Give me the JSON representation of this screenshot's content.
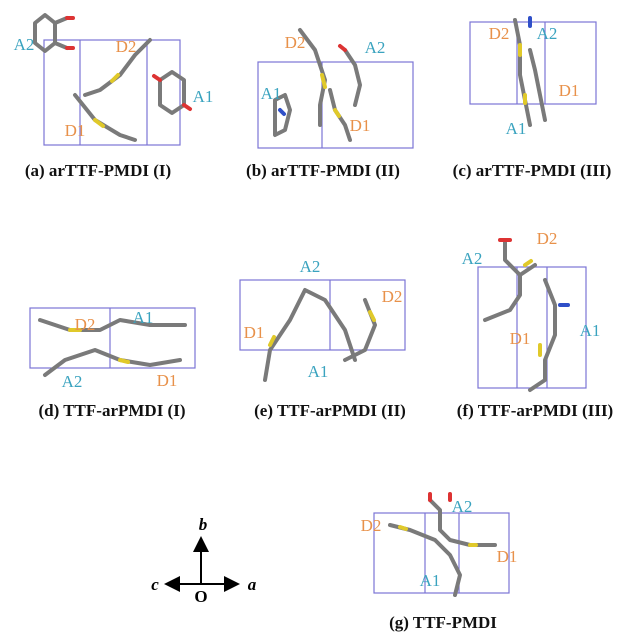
{
  "panels": [
    {
      "caption": "(a) arTTF-PMDI (I)",
      "labels": [
        "A2",
        "D2",
        "A1",
        "D1"
      ]
    },
    {
      "caption": "(b) arTTF-PMDI (II)",
      "labels": [
        "D2",
        "A2",
        "A1",
        "D1"
      ]
    },
    {
      "caption": "(c) arTTF-PMDI (III)",
      "labels": [
        "D2",
        "A2",
        "D1",
        "A1"
      ]
    },
    {
      "caption": "(d) TTF-arPMDI (I)",
      "labels": [
        "D2",
        "A1",
        "A2",
        "D1"
      ]
    },
    {
      "caption": "(e) TTF-arPMDI (II)",
      "labels": [
        "A2",
        "D2",
        "D1",
        "A1"
      ]
    },
    {
      "caption": "(f) TTF-arPMDI (III)",
      "labels": [
        "D2",
        "A2",
        "D1",
        "A1"
      ]
    },
    {
      "caption": "(g) TTF-PMDI",
      "labels": [
        "D2",
        "A2",
        "D1",
        "A1"
      ]
    }
  ],
  "axes": {
    "up": "b",
    "left": "c",
    "right": "a",
    "origin": "O"
  }
}
